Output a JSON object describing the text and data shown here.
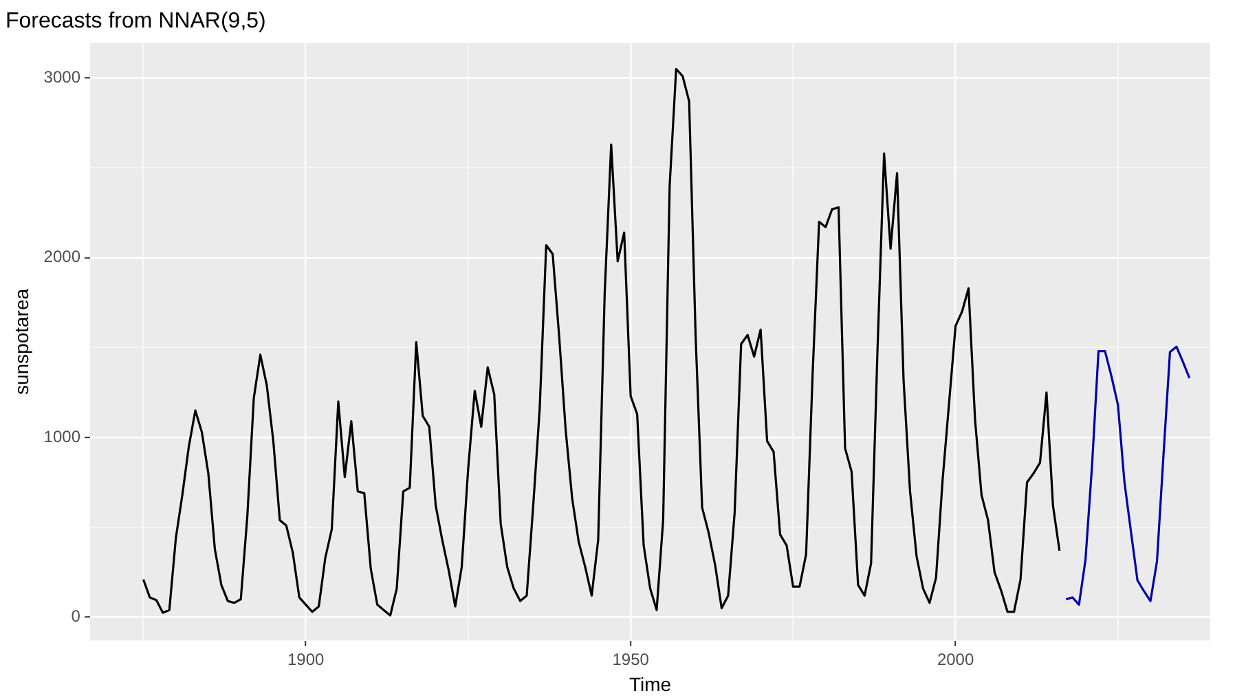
{
  "chart_data": {
    "type": "line",
    "title": "Forecasts from NNAR(9,5)",
    "xlabel": "Time",
    "ylabel": "sunspotarea",
    "xlim": [
      1866.8,
      2039.2
    ],
    "ylim": [
      -130,
      3195
    ],
    "xticks": [
      {
        "value": 1875,
        "label": null
      },
      1900,
      {
        "value": 1925,
        "label": null
      },
      1950,
      {
        "value": 1975,
        "label": null
      },
      2000,
      {
        "value": 2025,
        "label": null
      }
    ],
    "yticks": [
      0,
      {
        "value": 500,
        "label": null
      },
      1000,
      {
        "value": 1500,
        "label": null
      },
      2000,
      {
        "value": 2500,
        "label": null
      },
      3000
    ],
    "grid": true,
    "legend": false,
    "marker": "none",
    "line_style": "solid",
    "series": [
      {
        "color": "#000000",
        "x": [
          1875,
          1876,
          1877,
          1878,
          1879,
          1880,
          1881,
          1882,
          1883,
          1884,
          1885,
          1886,
          1887,
          1888,
          1889,
          1890,
          1891,
          1892,
          1893,
          1894,
          1895,
          1896,
          1897,
          1898,
          1899,
          1900,
          1901,
          1902,
          1903,
          1904,
          1905,
          1906,
          1907,
          1908,
          1909,
          1910,
          1911,
          1912,
          1913,
          1914,
          1915,
          1916,
          1917,
          1918,
          1919,
          1920,
          1921,
          1922,
          1923,
          1924,
          1925,
          1926,
          1927,
          1928,
          1929,
          1930,
          1931,
          1932,
          1933,
          1934,
          1935,
          1936,
          1937,
          1938,
          1939,
          1940,
          1941,
          1942,
          1943,
          1944,
          1945,
          1946,
          1947,
          1948,
          1949,
          1950,
          1951,
          1952,
          1953,
          1954,
          1955,
          1956,
          1957,
          1958,
          1959,
          1960,
          1961,
          1962,
          1963,
          1964,
          1965,
          1966,
          1967,
          1968,
          1969,
          1970,
          1971,
          1972,
          1973,
          1974,
          1975,
          1976,
          1977,
          1978,
          1979,
          1980,
          1981,
          1982,
          1983,
          1984,
          1985,
          1986,
          1987,
          1988,
          1989,
          1990,
          1991,
          1992,
          1993,
          1994,
          1995,
          1996,
          1997,
          1998,
          1999,
          2000,
          2001,
          2002,
          2003,
          2004,
          2005,
          2006,
          2007,
          2008,
          2009,
          2010,
          2011,
          2012,
          2013,
          2014,
          2015,
          2016
        ],
        "values": [
          210,
          110,
          95,
          25,
          40,
          440,
          680,
          950,
          1150,
          1030,
          800,
          380,
          180,
          90,
          80,
          100,
          560,
          1220,
          1460,
          1290,
          980,
          540,
          510,
          360,
          110,
          70,
          30,
          60,
          330,
          490,
          1200,
          780,
          1090,
          700,
          690,
          270,
          70,
          40,
          10,
          160,
          700,
          720,
          1530,
          1120,
          1060,
          620,
          430,
          260,
          60,
          280,
          830,
          1260,
          1060,
          1390,
          1240,
          520,
          280,
          160,
          90,
          120,
          620,
          1160,
          2070,
          2020,
          1560,
          1040,
          660,
          420,
          280,
          120,
          430,
          1800,
          2630,
          1980,
          2140,
          1230,
          1130,
          400,
          160,
          40,
          540,
          2400,
          3050,
          3010,
          2870,
          1560,
          610,
          470,
          290,
          50,
          120,
          580,
          1520,
          1570,
          1450,
          1600,
          980,
          920,
          460,
          400,
          170,
          170,
          350,
          1350,
          2200,
          2170,
          2270,
          2280,
          940,
          810,
          180,
          120,
          300,
          1500,
          2580,
          2050,
          2470,
          1320,
          700,
          340,
          160,
          80,
          220,
          760,
          1190,
          1620,
          1700,
          1830,
          1100,
          680,
          540,
          250,
          150,
          30,
          30,
          210,
          750,
          800,
          860,
          1250,
          620,
          370
        ]
      },
      {
        "color": "#0000aa",
        "x": [
          2017,
          2018,
          2019,
          2020,
          2021,
          2022,
          2023,
          2024,
          2025,
          2026,
          2027,
          2028,
          2029,
          2030,
          2031,
          2032,
          2033,
          2034,
          2035,
          2036
        ],
        "values": [
          100,
          110,
          70,
          320,
          840,
          1480,
          1480,
          1340,
          1180,
          750,
          475,
          205,
          145,
          90,
          310,
          900,
          1475,
          1505,
          1420,
          1330
        ]
      }
    ]
  }
}
